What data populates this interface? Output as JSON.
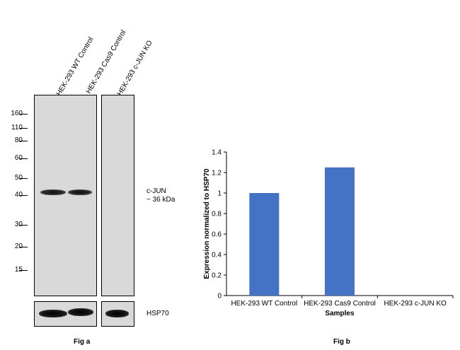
{
  "western_blot": {
    "lanes": [
      "HEK-293 WT Control",
      "HEK-293 Cas9 Control",
      "HEK-293 c-JUN KO"
    ],
    "mw_markers": [
      "160",
      "110",
      "80",
      "60",
      "50",
      "40",
      "30",
      "20",
      "15"
    ],
    "band_label_line1": "c-JUN",
    "band_label_line2": "~ 36 kDa",
    "loading_control_label": "HSP70",
    "caption": "Fig a"
  },
  "bar_chart": {
    "caption": "Fig b"
  },
  "chart_data": {
    "type": "bar",
    "categories": [
      "HEK-293 WT Control",
      "HEK-293 Cas9 Control",
      "HEK-293 c-JUN KO"
    ],
    "values": [
      1.0,
      1.25,
      0.0
    ],
    "xlabel": "Samples",
    "ylabel": "Expression normalized to HSP70",
    "ylim": [
      0,
      1.4
    ],
    "yticks": [
      "0",
      "0.2",
      "0.4",
      "0.6",
      "0.8",
      "1",
      "1.2",
      "1.4"
    ],
    "bar_color": "#4472c4",
    "grid": false
  }
}
